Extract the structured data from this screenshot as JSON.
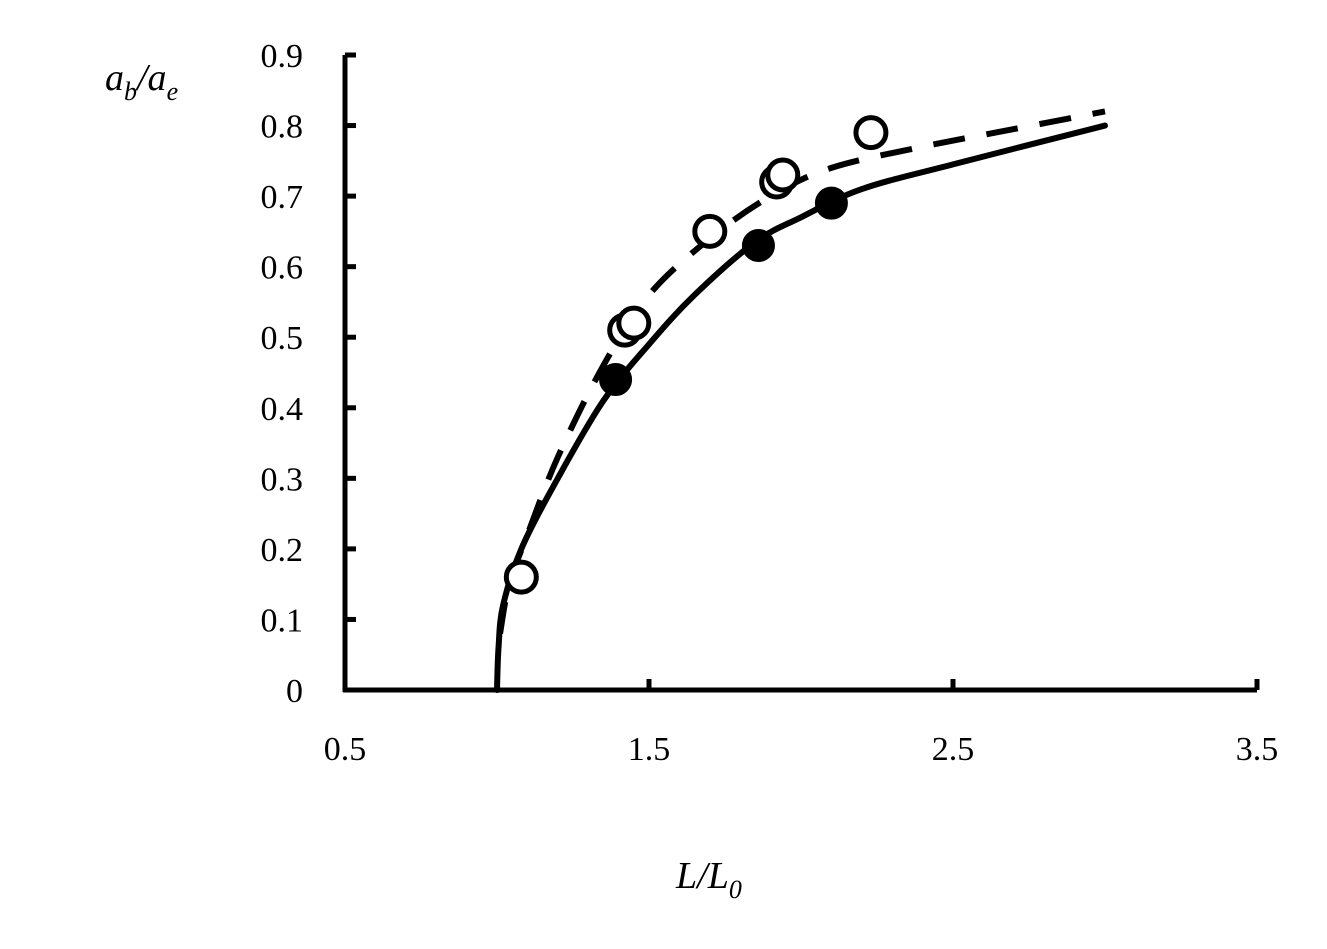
{
  "chart_data": {
    "type": "scatter",
    "xlabel": {
      "main": "L/L",
      "sub": "0"
    },
    "ylabel": {
      "a": "a",
      "a_sub": "b",
      "slash": "/a",
      "slash_sub": "e"
    },
    "xlim": [
      0.5,
      3.5
    ],
    "ylim": [
      0,
      0.9
    ],
    "x_ticks": [
      "0.5",
      "1.5",
      "2.5",
      "3.5"
    ],
    "y_ticks": [
      "0",
      "0.1",
      "0.2",
      "0.3",
      "0.4",
      "0.5",
      "0.6",
      "0.7",
      "0.8",
      "0.9"
    ],
    "x_tick_values": [
      0.5,
      1.5,
      2.5,
      3.5
    ],
    "y_tick_values": [
      0,
      0.1,
      0.2,
      0.3,
      0.4,
      0.5,
      0.6,
      0.7,
      0.8,
      0.9
    ],
    "grid": false,
    "legend": "none",
    "series": [
      {
        "style": "solid-line",
        "color": "#000000",
        "points": [
          [
            1.0,
            0
          ],
          [
            1.005,
            0.06
          ],
          [
            1.02,
            0.12
          ],
          [
            1.08,
            0.2
          ],
          [
            1.2,
            0.3
          ],
          [
            1.35,
            0.41
          ],
          [
            1.5,
            0.49
          ],
          [
            1.65,
            0.56
          ],
          [
            1.85,
            0.635
          ],
          [
            2.0,
            0.67
          ],
          [
            2.2,
            0.71
          ],
          [
            2.5,
            0.745
          ],
          [
            3.0,
            0.8
          ]
        ]
      },
      {
        "style": "dashed-line",
        "color": "#000000",
        "points": [
          [
            1.01,
            0.08
          ],
          [
            1.04,
            0.15
          ],
          [
            1.1,
            0.22
          ],
          [
            1.2,
            0.33
          ],
          [
            1.35,
            0.46
          ],
          [
            1.5,
            0.56
          ],
          [
            1.7,
            0.64
          ],
          [
            1.9,
            0.7
          ],
          [
            2.1,
            0.74
          ],
          [
            2.4,
            0.77
          ],
          [
            2.7,
            0.795
          ],
          [
            3.0,
            0.82
          ]
        ]
      },
      {
        "style": "filled-circles",
        "color": "#000000",
        "points": [
          [
            1.39,
            0.44
          ],
          [
            1.86,
            0.63
          ],
          [
            2.1,
            0.69
          ]
        ]
      },
      {
        "style": "open-circles",
        "color": "#000000",
        "points": [
          [
            1.08,
            0.16
          ],
          [
            1.42,
            0.51
          ],
          [
            1.45,
            0.52
          ],
          [
            1.7,
            0.65
          ],
          [
            1.92,
            0.72
          ],
          [
            1.94,
            0.73
          ],
          [
            2.23,
            0.79
          ]
        ]
      }
    ]
  }
}
